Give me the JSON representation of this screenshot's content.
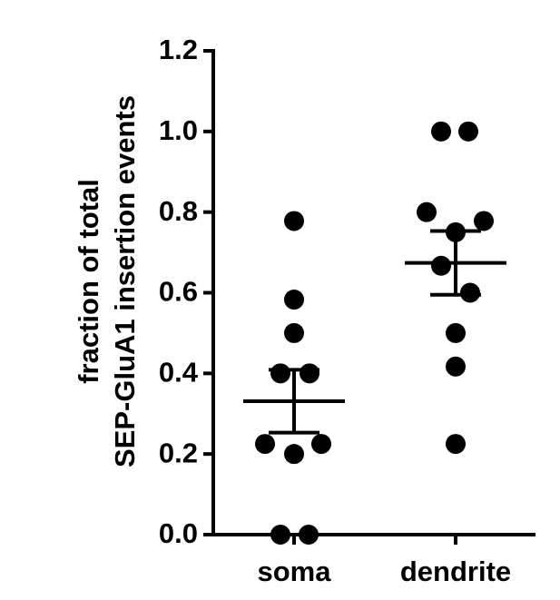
{
  "chart_data": {
    "type": "scatter",
    "ylabel": [
      "fraction of total",
      "SEP-GluA1 insertion events"
    ],
    "categories": [
      "soma",
      "dendrite"
    ],
    "color": "#000000",
    "groups": [
      {
        "values": [
          0.778,
          0.583,
          0.5,
          0.4,
          0.4,
          0.225,
          0.225,
          0.2,
          0,
          0
        ],
        "mean": 0.331,
        "sem": 0.078
      },
      {
        "values": [
          1.0,
          1.0,
          0.8,
          0.75,
          0.778,
          0.667,
          0.6,
          0.5,
          0.417,
          0.225
        ],
        "mean": 0.674,
        "sem": 0.079
      }
    ],
    "ylim": [
      0,
      1.2
    ],
    "yticks": [
      {
        "value": 0,
        "label": "0.0"
      },
      {
        "value": 0.2,
        "label": "0.2"
      },
      {
        "value": 0.4,
        "label": "0.4"
      },
      {
        "value": 0.6,
        "label": "0.6"
      },
      {
        "value": 0.8,
        "label": "0.8"
      },
      {
        "value": 1,
        "label": "1.0"
      },
      {
        "value": 1.2,
        "label": "1.2"
      }
    ]
  }
}
